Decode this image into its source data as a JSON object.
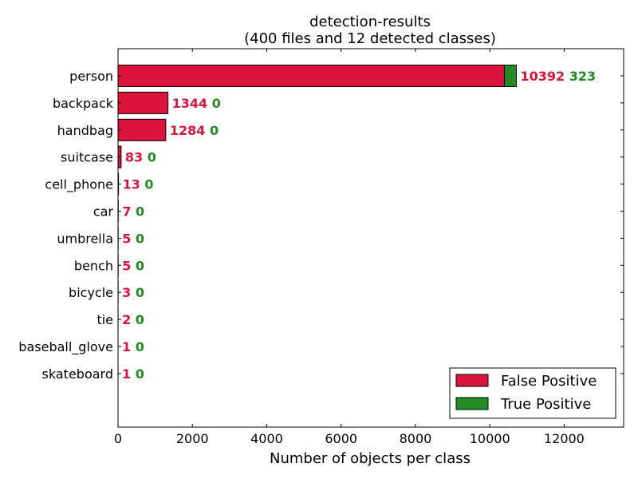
{
  "chart_data": {
    "type": "bar",
    "orientation": "horizontal",
    "stacked": true,
    "title": "detection-results",
    "subtitle": "(400 files and 12 detected classes)",
    "xlabel": "Number of objects per class",
    "ylabel": "",
    "xlim": [
      0,
      13600
    ],
    "xticks": [
      0,
      2000,
      4000,
      6000,
      8000,
      10000,
      12000
    ],
    "grid": false,
    "legend_position": "bottom-right",
    "categories": [
      "person",
      "backpack",
      "handbag",
      "suitcase",
      "cell_phone",
      "car",
      "umbrella",
      "bench",
      "bicycle",
      "tie",
      "baseball_glove",
      "skateboard"
    ],
    "series": [
      {
        "name": "False Positive",
        "color": "#dc143c",
        "values": [
          10392,
          1344,
          1284,
          83,
          13,
          7,
          5,
          5,
          3,
          2,
          1,
          1
        ]
      },
      {
        "name": "True Positive",
        "color": "#228b22",
        "values": [
          323,
          0,
          0,
          0,
          0,
          0,
          0,
          0,
          0,
          0,
          0,
          0
        ]
      }
    ]
  }
}
